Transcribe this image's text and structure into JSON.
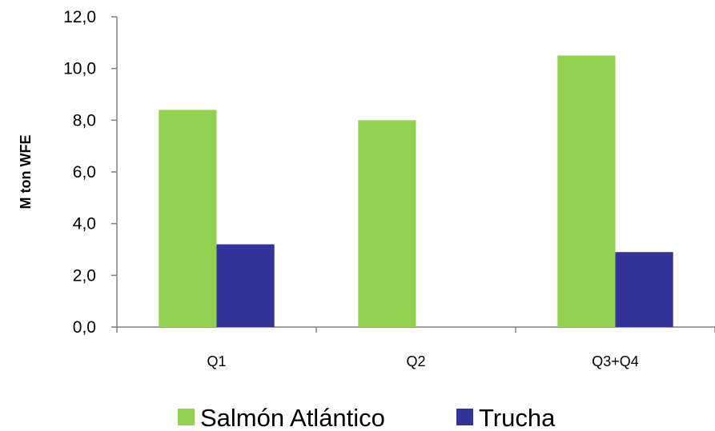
{
  "chart_data": {
    "type": "bar",
    "title": "",
    "xlabel": "",
    "ylabel": "M ton WFE",
    "categories": [
      "Q1",
      "Q2",
      "Q3+Q4"
    ],
    "series": [
      {
        "name": "Salmón Atlántico",
        "color": "#92d050",
        "values": [
          8.4,
          8.0,
          10.5
        ]
      },
      {
        "name": "Trucha",
        "color": "#333399",
        "values": [
          3.2,
          null,
          2.9
        ]
      }
    ],
    "ylim": [
      0,
      12
    ],
    "yticks": [
      "0,0",
      "2,0",
      "4,0",
      "6,0",
      "8,0",
      "10,0",
      "12,0"
    ],
    "grid": false,
    "legend_position": "bottom"
  }
}
